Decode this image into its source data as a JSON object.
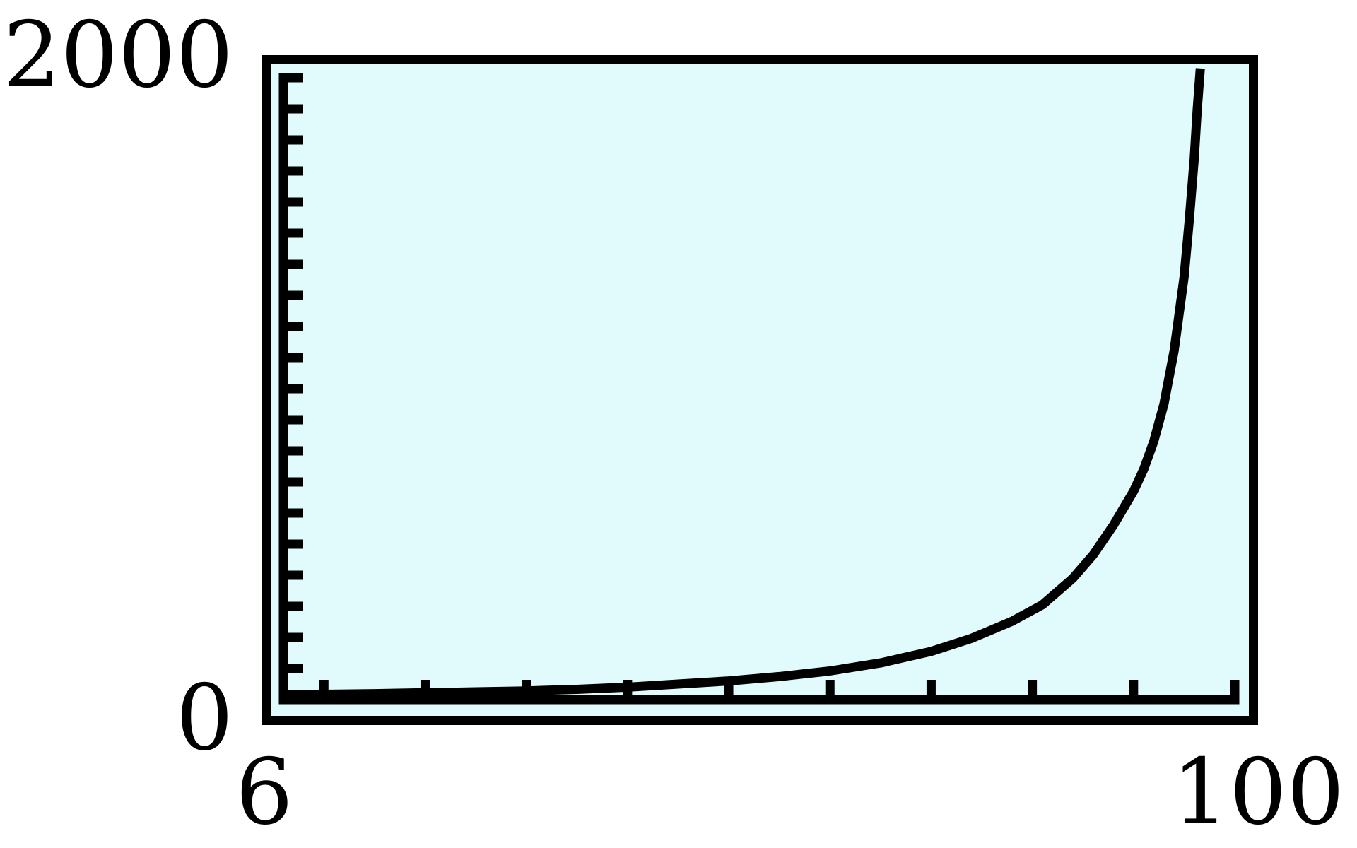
{
  "figure": {
    "background": "#ffffff",
    "plot_background": "#e1fbfd",
    "frame_color": "#000000",
    "axis_color": "#000000",
    "line_color": "#000000"
  },
  "labels": {
    "y_max": "2000",
    "y_min": "0",
    "x_min": "6",
    "x_max": "100"
  },
  "chart_data": {
    "type": "line",
    "title": "",
    "xlabel": "",
    "ylabel": "",
    "xlim": [
      6,
      100
    ],
    "ylim": [
      0,
      2000
    ],
    "x_ticks": [
      10,
      20,
      30,
      40,
      50,
      60,
      70,
      80,
      90,
      100
    ],
    "y_ticks": [
      100,
      200,
      300,
      400,
      500,
      600,
      700,
      800,
      900,
      1000,
      1100,
      1200,
      1300,
      1400,
      1500,
      1600,
      1700,
      1800,
      1900,
      2000
    ],
    "x_tick_labels_shown": [
      "6",
      "100"
    ],
    "y_tick_labels_shown": [
      "0",
      "2000"
    ],
    "grid": false,
    "legend": false,
    "series": [
      {
        "name": "curve",
        "points": [
          [
            6,
            15
          ],
          [
            10,
            17
          ],
          [
            15,
            19
          ],
          [
            20,
            22
          ],
          [
            25,
            25
          ],
          [
            30,
            28
          ],
          [
            35,
            33
          ],
          [
            40,
            40
          ],
          [
            45,
            50
          ],
          [
            50,
            60
          ],
          [
            55,
            74
          ],
          [
            60,
            92
          ],
          [
            65,
            118
          ],
          [
            70,
            155
          ],
          [
            74,
            197
          ],
          [
            78,
            252
          ],
          [
            81,
            305
          ],
          [
            84,
            390
          ],
          [
            86,
            465
          ],
          [
            88,
            560
          ],
          [
            90,
            670
          ],
          [
            91,
            740
          ],
          [
            92,
            830
          ],
          [
            93,
            950
          ],
          [
            94,
            1120
          ],
          [
            95,
            1360
          ],
          [
            95.5,
            1540
          ],
          [
            96,
            1740
          ],
          [
            96.3,
            1900
          ],
          [
            96.6,
            2030
          ]
        ]
      }
    ]
  }
}
